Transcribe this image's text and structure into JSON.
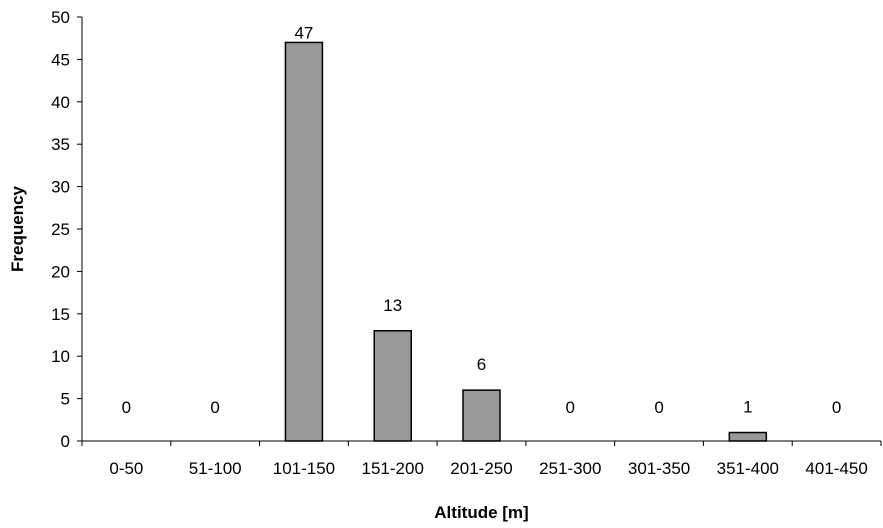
{
  "chart_data": {
    "type": "bar",
    "title": "",
    "xlabel": "Altitude [m]",
    "ylabel": "Frequency",
    "categories": [
      "0-50",
      "51-100",
      "101-150",
      "151-200",
      "201-250",
      "251-300",
      "301-350",
      "351-400",
      "401-450"
    ],
    "values": [
      0,
      0,
      47,
      13,
      6,
      0,
      0,
      1,
      0
    ],
    "data_labels": [
      "0",
      "0",
      "47",
      "13",
      "6",
      "0",
      "0",
      "1",
      "0"
    ],
    "ylim": [
      0,
      50
    ],
    "yticks": [
      0,
      5,
      10,
      15,
      20,
      25,
      30,
      35,
      40,
      45,
      50
    ],
    "grid": false,
    "legend": "none",
    "bar_color": "#999999",
    "bar_edge_color": "#000000"
  }
}
